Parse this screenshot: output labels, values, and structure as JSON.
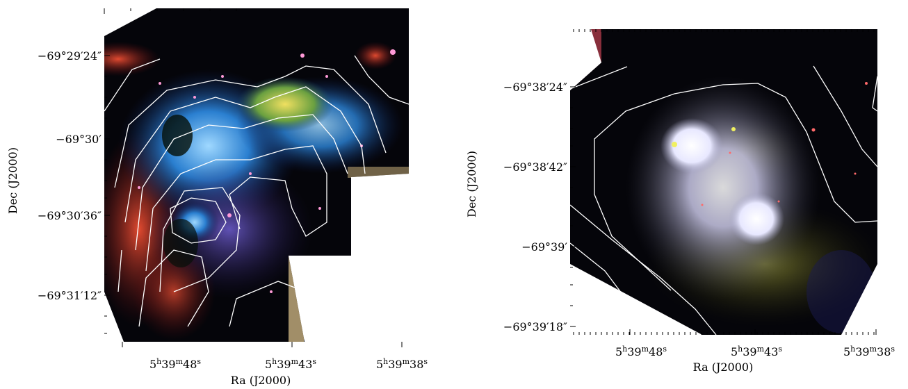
{
  "left_panel": {
    "y_axis_label": "Dec (J2000)",
    "x_axis_label": "Ra (J2000)",
    "y_ticks": [
      "−69°29′24″",
      "−69°30′",
      "−69°30′36″",
      "−69°31′12″"
    ],
    "x_ticks": [
      {
        "h": "5",
        "m": "39",
        "s": "48"
      },
      {
        "h": "5",
        "m": "39",
        "s": "43"
      },
      {
        "h": "5",
        "m": "39",
        "s": "38"
      }
    ]
  },
  "right_panel": {
    "y_axis_label": "Dec (J2000)",
    "x_axis_label": "Ra (J2000)",
    "y_ticks": [
      "−69°38′24″",
      "−69°38′42″",
      "−69°39′",
      "−69°39′18″"
    ],
    "x_ticks": [
      {
        "h": "5",
        "m": "39",
        "s": "48"
      },
      {
        "h": "5",
        "m": "39",
        "s": "43"
      },
      {
        "h": "5",
        "m": "39",
        "s": "38"
      }
    ]
  },
  "colors": {
    "contour": "#ffffff",
    "left_nebula_blue": "#2a7fd0",
    "left_nebula_red": "#c02a20",
    "left_nebula_yellow": "#d8c23a",
    "right_nebula_lavender": "#c8c6e6",
    "right_nebula_olive": "#6a6a2a",
    "background": "#ffffff",
    "sky": "#05050a"
  }
}
